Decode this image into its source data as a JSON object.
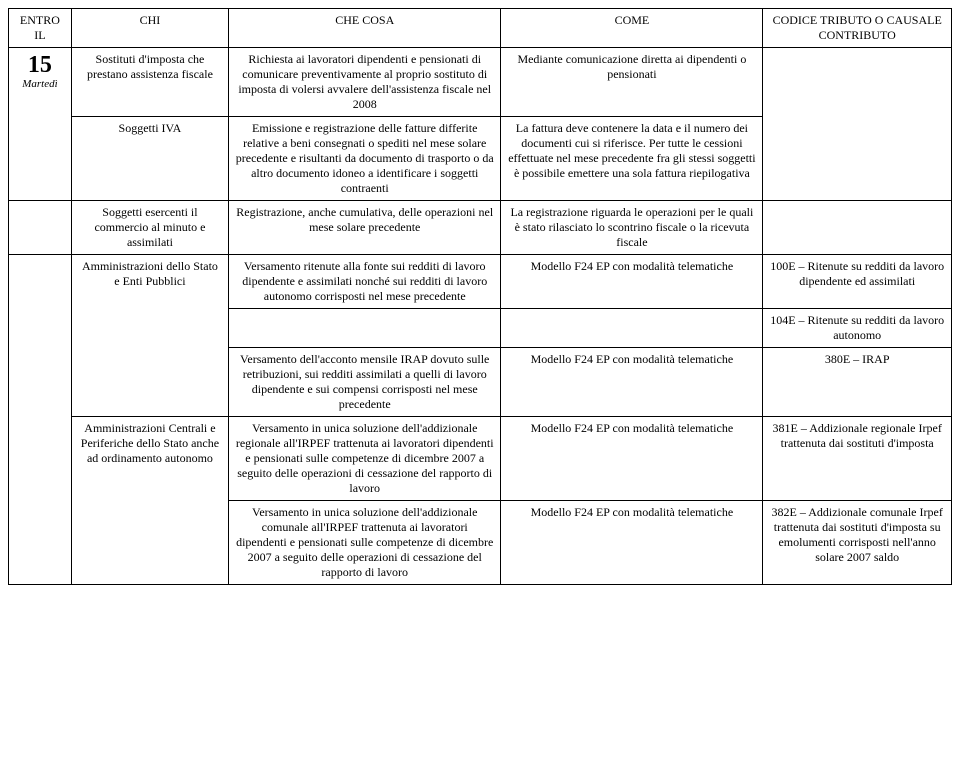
{
  "header": {
    "entro": "ENTRO IL",
    "chi": "CHI",
    "cosa": "CHE COSA",
    "come": "COME",
    "codice": "CODICE TRIBUTO O CAUSALE CONTRIBUTO"
  },
  "date": {
    "day": "15",
    "weekday": "Martedì"
  },
  "rows": [
    {
      "chi": "Sostituti d'imposta che prestano assistenza fiscale",
      "cosa": "Richiesta ai lavoratori dipendenti e pensionati di comunicare preventivamente al proprio sostituto di imposta di volersi avvalere dell'assistenza fiscale nel 2008",
      "come": "Mediante comunicazione diretta ai dipendenti o pensionati",
      "codice": ""
    },
    {
      "chi": "Soggetti IVA",
      "cosa": "Emissione e registrazione delle fatture differite relative a beni consegnati o spediti nel mese solare precedente e risultanti da documento di trasporto o da altro documento idoneo a identificare i soggetti contraenti",
      "come": "La fattura deve contenere la data e il numero dei documenti cui si riferisce. Per tutte le cessioni effettuate nel mese precedente fra gli stessi soggetti è possibile emettere una sola fattura riepilogativa",
      "codice": ""
    },
    {
      "chi": "Soggetti esercenti il commercio al minuto e assimilati",
      "cosa": "Registrazione, anche cumulativa, delle operazioni nel mese solare precedente",
      "come": "La registrazione riguarda le operazioni per le quali è stato rilasciato lo scontrino fiscale o la ricevuta fiscale",
      "codice": ""
    },
    {
      "chi": "Amministrazioni dello Stato e Enti Pubblici",
      "cosa": "Versamento ritenute alla fonte sui redditi di lavoro dipendente e assimilati nonché sui redditi di lavoro autonomo corrisposti nel mese precedente",
      "come": "Modello F24 EP con modalità telematiche",
      "codice": "100E – Ritenute su redditi da lavoro dipendente ed assimilati"
    },
    {
      "chi": "",
      "cosa": "",
      "come": "",
      "codice": "104E – Ritenute su redditi da lavoro autonomo"
    },
    {
      "chi": "",
      "cosa": "Versamento dell'acconto mensile IRAP dovuto sulle retribuzioni, sui redditi assimilati a quelli di lavoro dipendente e sui compensi corrisposti nel mese precedente",
      "come": "Modello F24 EP con modalità telematiche",
      "codice": "380E – IRAP"
    },
    {
      "chi": "Amministrazioni Centrali e Periferiche dello Stato anche ad ordinamento autonomo",
      "cosa": "Versamento in unica soluzione dell'addizionale regionale all'IRPEF trattenuta ai lavoratori dipendenti e pensionati sulle competenze di dicembre 2007 a seguito delle operazioni di cessazione del rapporto di lavoro",
      "come": "Modello F24 EP con modalità telematiche",
      "codice": "381E – Addizionale regionale Irpef trattenuta dai sostituti d'imposta"
    },
    {
      "chi": "",
      "cosa": "Versamento in unica soluzione dell'addizionale comunale all'IRPEF trattenuta ai lavoratori dipendenti e pensionati sulle competenze di dicembre 2007 a seguito delle operazioni di cessazione del rapporto di lavoro",
      "come": "Modello F24 EP con modalità telematiche",
      "codice": "382E – Addizionale comunale Irpef trattenuta dai sostituti d'imposta su emolumenti corrisposti nell'anno solare 2007 saldo"
    }
  ]
}
